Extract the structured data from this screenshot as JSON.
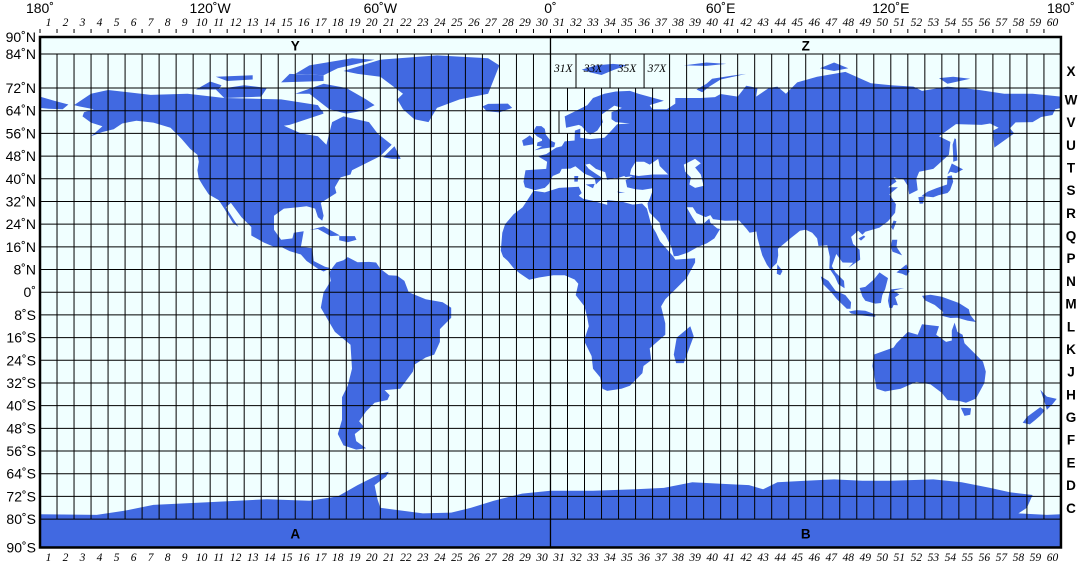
{
  "map": {
    "projection": "equirectangular",
    "colors": {
      "land": "#4169e1",
      "water": "#f0ffff",
      "grid": "#000000"
    },
    "lon_labels": [
      {
        "lon": -180,
        "text": "180˚"
      },
      {
        "lon": -120,
        "text": "120˚W"
      },
      {
        "lon": -60,
        "text": "60˚W"
      },
      {
        "lon": 0,
        "text": "0˚"
      },
      {
        "lon": 60,
        "text": "60˚E"
      },
      {
        "lon": 120,
        "text": "120˚E"
      },
      {
        "lon": 180,
        "text": "180˚"
      }
    ],
    "lat_labels": [
      {
        "lat": 90,
        "text": "90˚N"
      },
      {
        "lat": 84,
        "text": "84˚N"
      },
      {
        "lat": 72,
        "text": "72˚N"
      },
      {
        "lat": 64,
        "text": "64˚N"
      },
      {
        "lat": 56,
        "text": "56˚N"
      },
      {
        "lat": 48,
        "text": "48˚N"
      },
      {
        "lat": 40,
        "text": "40˚N"
      },
      {
        "lat": 32,
        "text": "32˚N"
      },
      {
        "lat": 24,
        "text": "24˚N"
      },
      {
        "lat": 16,
        "text": "16˚N"
      },
      {
        "lat": 8,
        "text": "8˚N"
      },
      {
        "lat": 0,
        "text": "0˚"
      },
      {
        "lat": -8,
        "text": "8˚S"
      },
      {
        "lat": -16,
        "text": "16˚S"
      },
      {
        "lat": -24,
        "text": "24˚S"
      },
      {
        "lat": -32,
        "text": "32˚S"
      },
      {
        "lat": -40,
        "text": "40˚S"
      },
      {
        "lat": -48,
        "text": "48˚S"
      },
      {
        "lat": -56,
        "text": "56˚S"
      },
      {
        "lat": -64,
        "text": "64˚S"
      },
      {
        "lat": -72,
        "text": "72˚S"
      },
      {
        "lat": -80,
        "text": "80˚S"
      },
      {
        "lat": -90,
        "text": "90˚S"
      }
    ],
    "zones": [
      "1",
      "2",
      "3",
      "4",
      "5",
      "6",
      "7",
      "8",
      "9",
      "10",
      "11",
      "12",
      "13",
      "14",
      "15",
      "16",
      "17",
      "18",
      "19",
      "20",
      "21",
      "22",
      "23",
      "24",
      "25",
      "26",
      "27",
      "28",
      "29",
      "30",
      "31",
      "32",
      "33",
      "34",
      "35",
      "36",
      "37",
      "38",
      "39",
      "40",
      "41",
      "42",
      "43",
      "44",
      "45",
      "46",
      "47",
      "48",
      "49",
      "50",
      "51",
      "52",
      "53",
      "54",
      "55",
      "56",
      "57",
      "58",
      "59",
      "60"
    ],
    "bands": [
      "C",
      "D",
      "E",
      "F",
      "G",
      "H",
      "J",
      "K",
      "L",
      "M",
      "N",
      "P",
      "Q",
      "R",
      "S",
      "T",
      "U",
      "V",
      "W",
      "X"
    ],
    "polar_zones": [
      {
        "text": "Y",
        "lon": -90,
        "lat": 87
      },
      {
        "text": "Z",
        "lon": 90,
        "lat": 87
      },
      {
        "text": "A",
        "lon": -90,
        "lat": -85
      },
      {
        "text": "B",
        "lon": 90,
        "lat": -85
      }
    ],
    "exception_zones": [
      {
        "text": "31X",
        "lon": 4.5
      },
      {
        "text": "33X",
        "lon": 15
      },
      {
        "text": "35X",
        "lon": 27
      },
      {
        "text": "37X",
        "lon": 37.5
      }
    ]
  }
}
